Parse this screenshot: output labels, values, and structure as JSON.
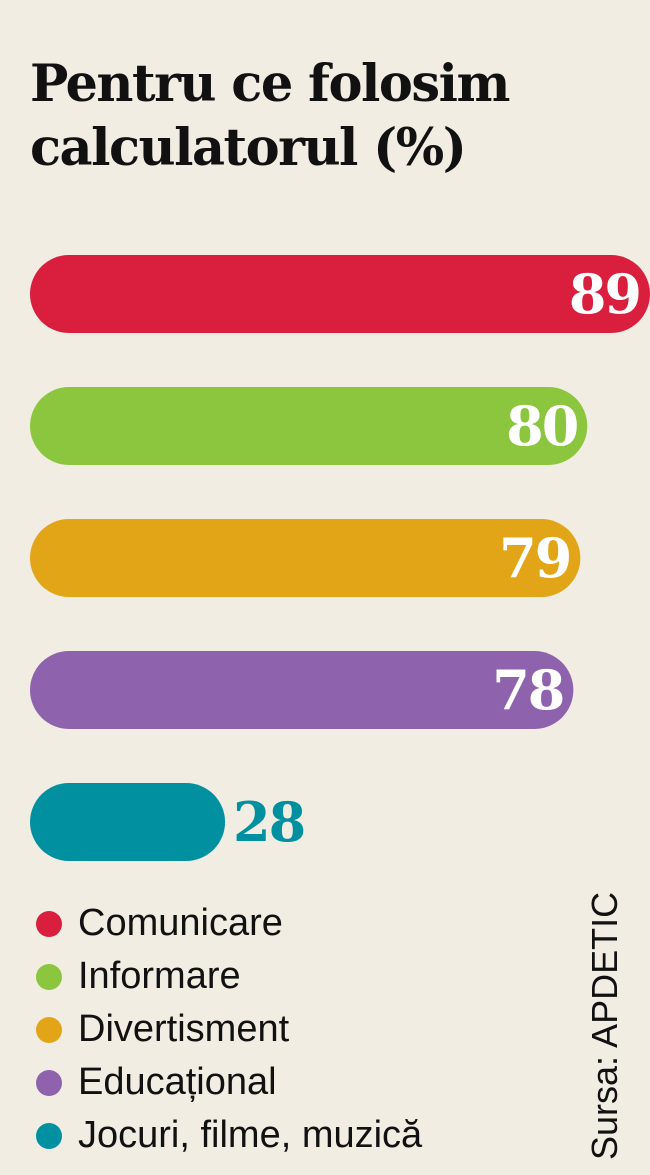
{
  "chart_data": {
    "type": "bar",
    "orientation": "horizontal",
    "title": "Pentru ce folosim calculatorul (%)",
    "categories": [
      "Comunicare",
      "Informare",
      "Divertisment",
      "Educațional",
      "Jocuri, filme, muzică"
    ],
    "values": [
      89,
      80,
      79,
      78,
      28
    ],
    "colors": [
      "#d91f3d",
      "#8cc63e",
      "#e3a518",
      "#8e62ad",
      "#00909f"
    ],
    "xlim": [
      0,
      89
    ],
    "grid": false,
    "legend": "bottom-left",
    "source": "Sursa: APDETIC"
  }
}
